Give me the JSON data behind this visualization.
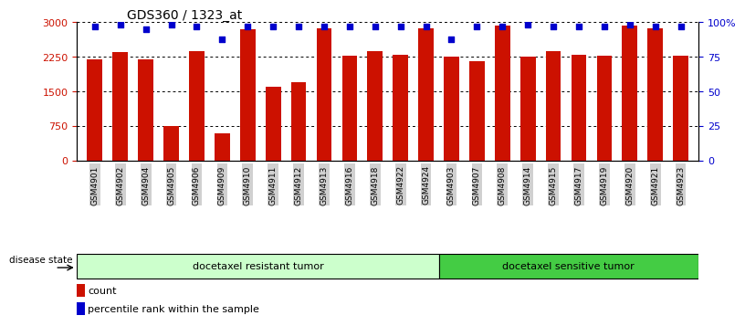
{
  "title": "GDS360 / 1323_at",
  "categories": [
    "GSM4901",
    "GSM4902",
    "GSM4904",
    "GSM4905",
    "GSM4906",
    "GSM4909",
    "GSM4910",
    "GSM4911",
    "GSM4912",
    "GSM4913",
    "GSM4916",
    "GSM4918",
    "GSM4922",
    "GSM4924",
    "GSM4903",
    "GSM4907",
    "GSM4908",
    "GSM4914",
    "GSM4915",
    "GSM4917",
    "GSM4919",
    "GSM4920",
    "GSM4921",
    "GSM4923"
  ],
  "counts": [
    2200,
    2350,
    2200,
    750,
    2380,
    580,
    2850,
    1600,
    1700,
    2870,
    2280,
    2370,
    2300,
    2870,
    2250,
    2150,
    2920,
    2250,
    2380,
    2300,
    2280,
    2920,
    2860,
    2280
  ],
  "percentile_ranks": [
    97,
    98,
    95,
    98,
    97,
    88,
    97,
    97,
    97,
    97,
    97,
    97,
    97,
    97,
    88,
    97,
    97,
    98,
    97,
    97,
    97,
    98,
    97,
    97
  ],
  "bar_color": "#cc1100",
  "dot_color": "#0000cc",
  "ylim_left": [
    0,
    3000
  ],
  "ylim_right": [
    0,
    100
  ],
  "yticks_left": [
    0,
    750,
    1500,
    2250,
    3000
  ],
  "ytick_labels_left": [
    "0",
    "750",
    "1500",
    "2250",
    "3000"
  ],
  "yticks_right": [
    0,
    25,
    50,
    75,
    100
  ],
  "ytick_labels_right": [
    "0",
    "25",
    "50",
    "75",
    "100%"
  ],
  "group1_label": "docetaxel resistant tumor",
  "group2_label": "docetaxel sensitive tumor",
  "group1_count": 14,
  "group2_count": 10,
  "disease_state_label": "disease state",
  "legend_count_label": "count",
  "legend_pct_label": "percentile rank within the sample",
  "group1_color": "#ccffcc",
  "group2_color": "#44cc44",
  "background_color": "#ffffff"
}
